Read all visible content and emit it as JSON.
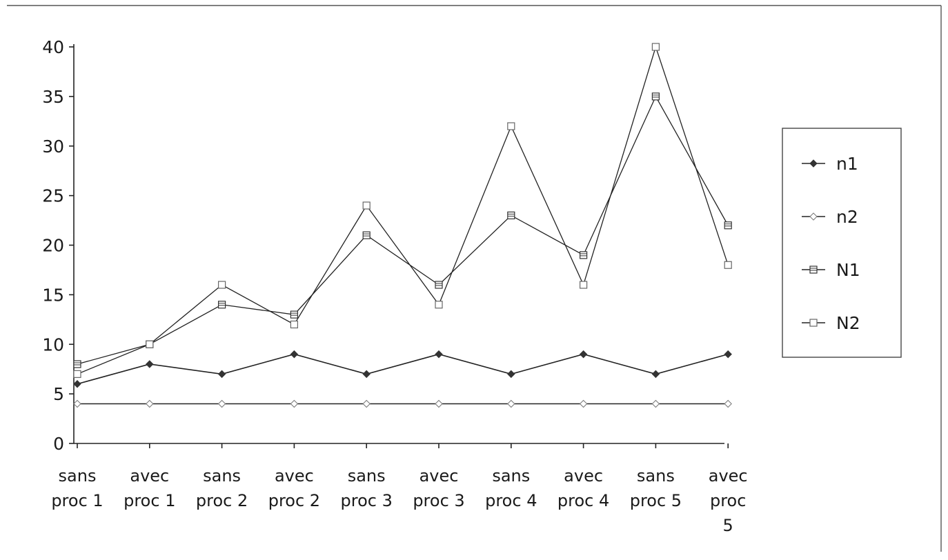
{
  "chart_data": {
    "type": "line",
    "title": "",
    "xlabel": "",
    "ylabel": "",
    "ylim": [
      0,
      40
    ],
    "yticks": [
      0,
      5,
      10,
      15,
      20,
      25,
      30,
      35,
      40
    ],
    "grid": false,
    "legend_position": "right",
    "categories": [
      [
        "sans",
        "proc 1"
      ],
      [
        "avec",
        "proc 1"
      ],
      [
        "sans",
        "proc 2"
      ],
      [
        "avec",
        "proc 2"
      ],
      [
        "sans",
        "proc 3"
      ],
      [
        "avec",
        "proc 3"
      ],
      [
        "sans",
        "proc 4"
      ],
      [
        "avec",
        "proc 4"
      ],
      [
        "sans",
        "proc 5"
      ],
      [
        "avec",
        "proc",
        "5"
      ]
    ],
    "series": [
      {
        "name": "n1",
        "marker": "filled-diamond",
        "values": [
          6,
          8,
          7,
          9,
          7,
          9,
          7,
          9,
          7,
          9
        ]
      },
      {
        "name": "n2",
        "marker": "open-diamond",
        "values": [
          4,
          4,
          4,
          4,
          4,
          4,
          4,
          4,
          4,
          4
        ]
      },
      {
        "name": "N1",
        "marker": "filled-square",
        "values": [
          8,
          10,
          14,
          13,
          21,
          16,
          23,
          19,
          35,
          22
        ]
      },
      {
        "name": "N2",
        "marker": "open-square",
        "values": [
          7,
          10,
          16,
          12,
          24,
          14,
          32,
          16,
          40,
          18
        ]
      }
    ],
    "colors": {
      "line": "#222222",
      "marker": "#333333"
    }
  }
}
